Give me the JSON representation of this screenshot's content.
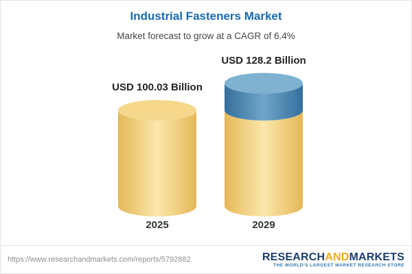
{
  "header": {
    "title": "Industrial Fasteners Market",
    "subtitle": "Market forecast to grow at a CAGR of 6.4%"
  },
  "chart_data": {
    "type": "bar",
    "subtype": "3d-cylinder",
    "title": "Industrial Fasteners Market",
    "subtitle": "Market forecast to grow at a CAGR of 6.4%",
    "unit": "USD Billion",
    "categories": [
      "2025",
      "2029"
    ],
    "values": [
      100.03,
      128.2
    ],
    "value_labels": [
      "USD 100.03 Billion",
      "USD 128.2 Billion"
    ],
    "cagr_percent": 6.4,
    "growth_base": 100.03,
    "legend": false,
    "ylim": [
      0,
      140
    ],
    "colors": {
      "base_edge": "#e5b857",
      "base_center": "#fbe7ab",
      "base_top": "#f5d88c",
      "growth_edge": "#356f9d",
      "growth_center": "#6fa5c8",
      "growth_top": "#7fb2d0"
    }
  },
  "footer": {
    "url": "https://www.researchandmarkets.com/reports/5792882",
    "logo": {
      "research": "RESEARCH",
      "and": "AND",
      "markets": "MARKETS",
      "tagline": "THE WORLD'S LARGEST MARKET RESEARCH STORE"
    }
  }
}
